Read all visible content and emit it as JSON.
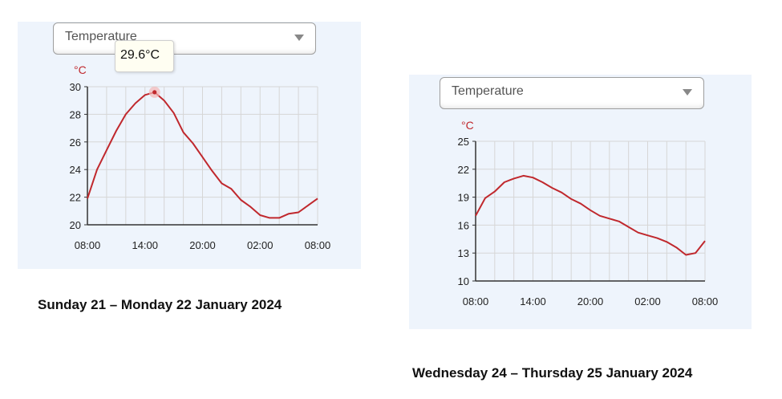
{
  "colors": {
    "line": "#c0282d",
    "grid": "#d6d6d6",
    "axis": "#333333",
    "unit": "#c0282d",
    "panel": "#eef4fc"
  },
  "icons": {
    "dropdown_arrow": "chevron-down-icon"
  },
  "panel1": {
    "dropdown_label": "Temperature",
    "tooltip": "29.6°C",
    "caption": "Sunday 21 – Monday 22 January 2024"
  },
  "panel2": {
    "dropdown_label": "Temperature",
    "caption": "Wednesday 24 – Thursday 25 January 2024"
  },
  "chart_data": [
    {
      "type": "line",
      "ylabel": "°C",
      "ylim": [
        20,
        30
      ],
      "yticks": [
        20,
        22,
        24,
        26,
        28,
        30
      ],
      "xticks": [
        "08:00",
        "14:00",
        "20:00",
        "02:00",
        "08:00"
      ],
      "grid": true,
      "highlight_index": 7,
      "x": [
        "08:00",
        "09:00",
        "10:00",
        "11:00",
        "12:00",
        "13:00",
        "14:00",
        "15:00",
        "16:00",
        "17:00",
        "18:00",
        "19:00",
        "20:00",
        "21:00",
        "22:00",
        "23:00",
        "00:00",
        "01:00",
        "02:00",
        "03:00",
        "04:00",
        "05:00",
        "06:00",
        "07:00",
        "08:00"
      ],
      "series": [
        {
          "values": [
            21.9,
            24.0,
            25.4,
            26.8,
            28.0,
            28.8,
            29.4,
            29.6,
            29.0,
            28.1,
            26.7,
            25.9,
            24.9,
            23.9,
            23.0,
            22.6,
            21.8,
            21.3,
            20.7,
            20.5,
            20.5,
            20.8,
            20.9,
            21.4,
            21.9
          ]
        }
      ]
    },
    {
      "type": "line",
      "ylabel": "°C",
      "ylim": [
        10,
        25
      ],
      "yticks": [
        10,
        13,
        16,
        19,
        22,
        25
      ],
      "xticks": [
        "08:00",
        "14:00",
        "20:00",
        "02:00",
        "08:00"
      ],
      "grid": true,
      "x": [
        "08:00",
        "09:00",
        "10:00",
        "11:00",
        "12:00",
        "13:00",
        "14:00",
        "15:00",
        "16:00",
        "17:00",
        "18:00",
        "19:00",
        "20:00",
        "21:00",
        "22:00",
        "23:00",
        "00:00",
        "01:00",
        "02:00",
        "03:00",
        "04:00",
        "05:00",
        "06:00",
        "07:00",
        "08:00"
      ],
      "series": [
        {
          "values": [
            17.0,
            18.9,
            19.6,
            20.6,
            21.0,
            21.3,
            21.1,
            20.6,
            20.0,
            19.5,
            18.8,
            18.3,
            17.6,
            17.0,
            16.7,
            16.4,
            15.8,
            15.2,
            14.9,
            14.6,
            14.2,
            13.6,
            12.8,
            13.0,
            14.3
          ]
        }
      ]
    }
  ]
}
